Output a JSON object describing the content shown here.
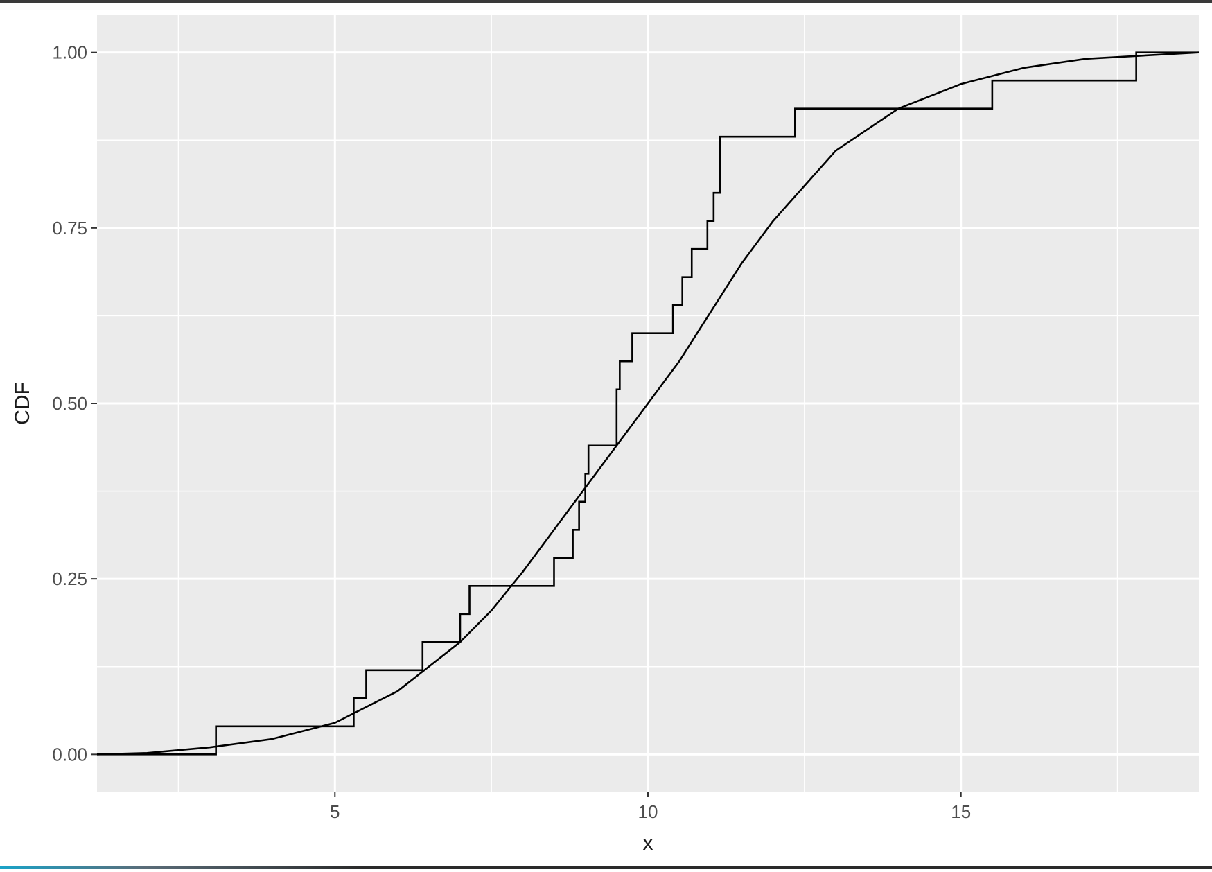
{
  "chart_data": {
    "type": "line",
    "title": "",
    "xlabel": "x",
    "ylabel": "CDF",
    "xlim": [
      1.2,
      18.8
    ],
    "ylim": [
      -0.053,
      1.053
    ],
    "x_ticks": [
      5,
      10,
      15
    ],
    "x_tick_labels": [
      "5",
      "10",
      "15"
    ],
    "y_ticks": [
      0,
      0.25,
      0.5,
      0.75,
      1
    ],
    "y_tick_labels": [
      "0.00",
      "0.25",
      "0.50",
      "0.75",
      "1.00"
    ],
    "grid": true,
    "panel_background": "#ebebeb",
    "grid_color": "#ffffff",
    "line_color": "#000000",
    "series": [
      {
        "kind": "ecdf-step",
        "x": [
          2.5,
          3.1,
          5.3,
          5.5,
          6.4,
          7.0,
          7.15,
          8.5,
          8.8,
          8.9,
          9.0,
          9.05,
          9.5,
          9.55,
          9.75,
          10.4,
          10.55,
          10.7,
          10.95,
          11.05,
          11.15,
          12.35,
          15.5,
          17.8
        ],
        "y": [
          0.0,
          0.04,
          0.08,
          0.12,
          0.16,
          0.2,
          0.24,
          0.28,
          0.32,
          0.36,
          0.4,
          0.44,
          0.52,
          0.56,
          0.6,
          0.64,
          0.68,
          0.72,
          0.76,
          0.8,
          0.88,
          0.92,
          0.96,
          1.0
        ]
      },
      {
        "kind": "theoretical-cdf",
        "x": [
          1.2,
          2.0,
          3.0,
          4.0,
          5.0,
          6.0,
          7.0,
          7.5,
          8.0,
          8.5,
          9.0,
          9.5,
          10.0,
          10.5,
          11.0,
          11.5,
          12.0,
          12.5,
          13.0,
          14.0,
          15.0,
          16.0,
          17.0,
          18.8
        ],
        "y": [
          0.0,
          0.002,
          0.01,
          0.022,
          0.045,
          0.09,
          0.16,
          0.205,
          0.26,
          0.32,
          0.38,
          0.44,
          0.5,
          0.56,
          0.63,
          0.7,
          0.76,
          0.81,
          0.86,
          0.92,
          0.955,
          0.978,
          0.991,
          1.0
        ]
      }
    ]
  }
}
